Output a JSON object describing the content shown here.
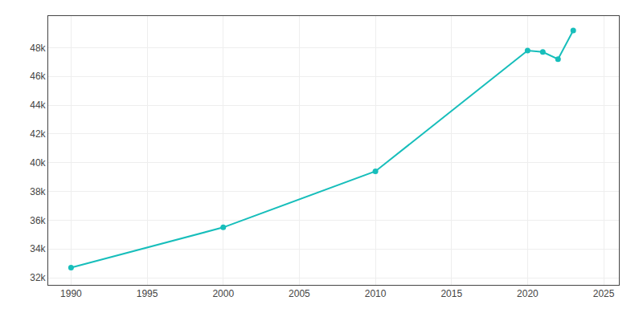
{
  "chart_data": {
    "type": "line",
    "x": [
      1990,
      2000,
      2010,
      2020,
      2021,
      2022,
      2023
    ],
    "values": [
      32700,
      35500,
      39400,
      47800,
      47700,
      47200,
      49200
    ],
    "color": "#17BEBB",
    "marker": "circle",
    "xlim": [
      1988.5,
      2026
    ],
    "ylim": [
      31500,
      50200
    ],
    "xticks": [
      1990,
      1995,
      2000,
      2005,
      2010,
      2015,
      2020,
      2025
    ],
    "yticks": [
      {
        "value": 32000,
        "label": "32k"
      },
      {
        "value": 34000,
        "label": "34k"
      },
      {
        "value": 36000,
        "label": "36k"
      },
      {
        "value": 38000,
        "label": "38k"
      },
      {
        "value": 40000,
        "label": "40k"
      },
      {
        "value": 42000,
        "label": "42k"
      },
      {
        "value": 44000,
        "label": "44k"
      },
      {
        "value": 46000,
        "label": "46k"
      },
      {
        "value": 48000,
        "label": "48k"
      }
    ],
    "grid": true
  }
}
